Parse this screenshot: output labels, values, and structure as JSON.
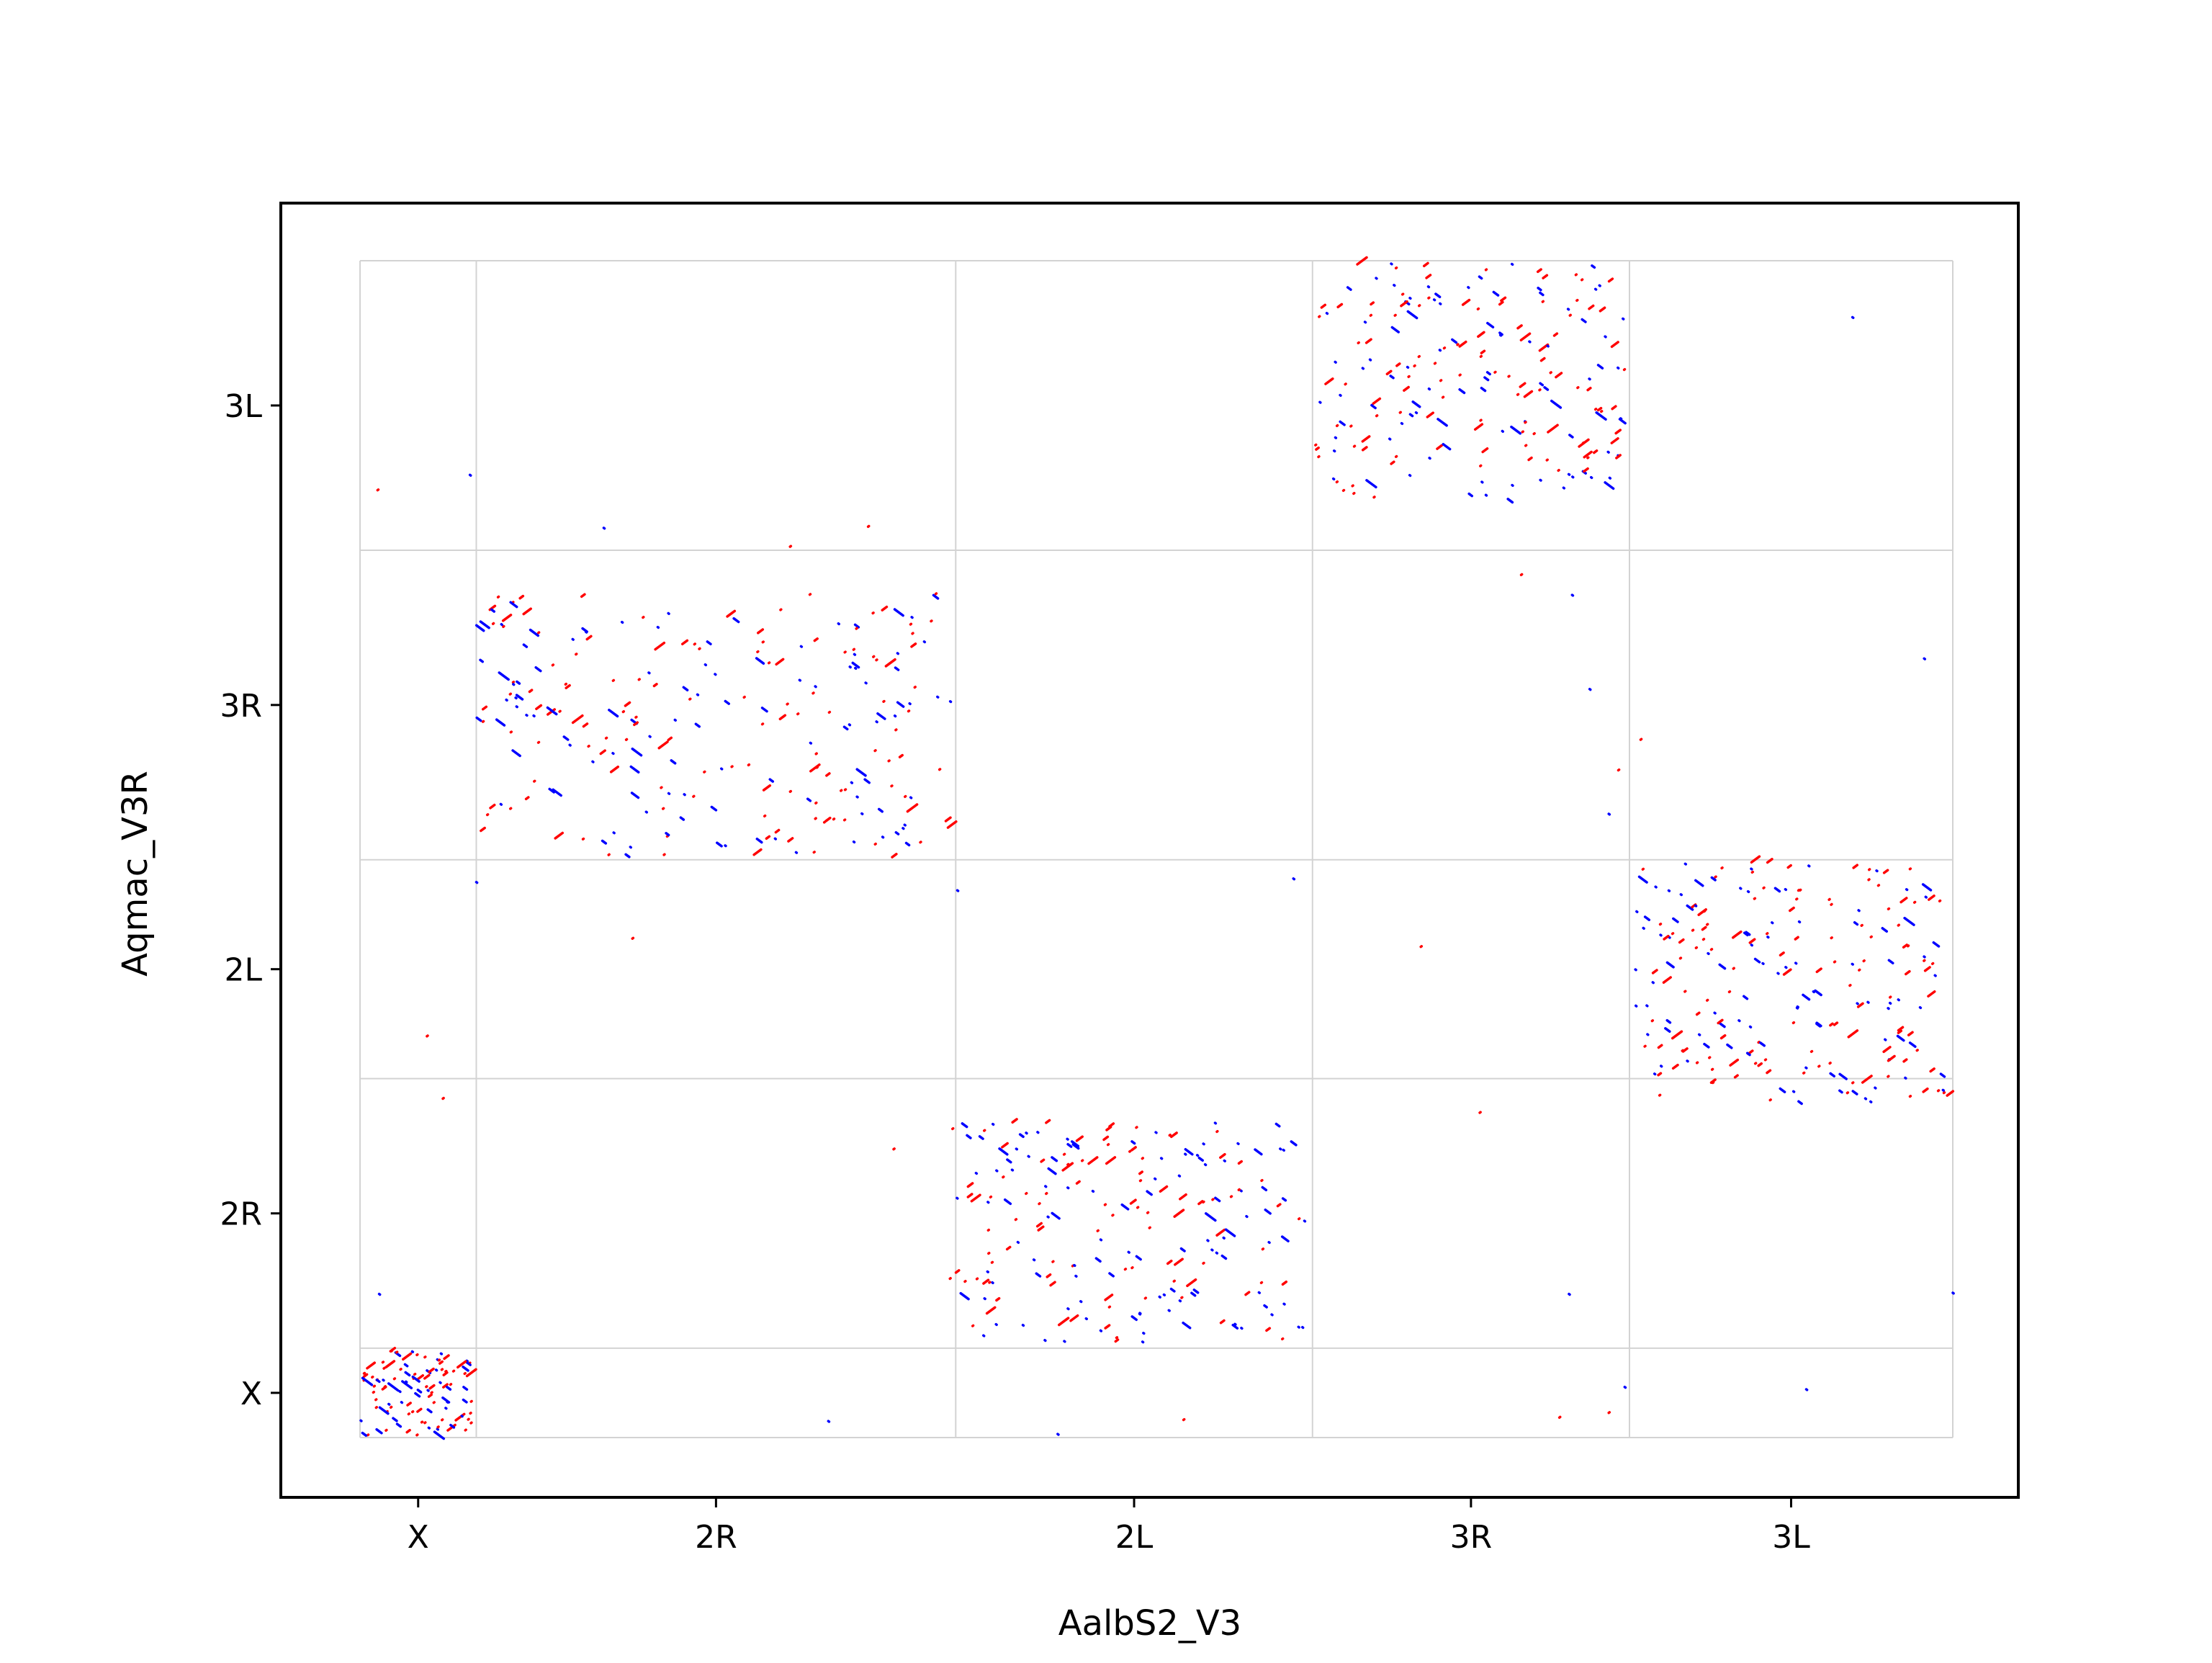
{
  "chart_data": {
    "type": "scatter",
    "title": "",
    "xlabel": "AalbS2_V3",
    "ylabel": "Aqmac_V3R",
    "grid": true,
    "legend": "none",
    "colors": {
      "forward": "#ff0000",
      "reverse": "#0000ff",
      "grid": "#d3d3d3"
    },
    "xlim": [
      0,
      1000
    ],
    "ylim": [
      0,
      1000
    ],
    "x_boundaries": [
      0,
      73,
      374,
      598,
      797,
      1000
    ],
    "y_boundaries": [
      0,
      76,
      305,
      491,
      754,
      1000
    ],
    "x_chromosomes": [
      {
        "label": "X",
        "start": 0,
        "end": 73
      },
      {
        "label": "2R",
        "start": 73,
        "end": 374
      },
      {
        "label": "2L",
        "start": 374,
        "end": 598
      },
      {
        "label": "3R",
        "start": 598,
        "end": 797
      },
      {
        "label": "3L",
        "start": 797,
        "end": 1000
      }
    ],
    "y_chromosomes": [
      {
        "label": "X",
        "start": 0,
        "end": 76
      },
      {
        "label": "2R",
        "start": 76,
        "end": 305
      },
      {
        "label": "2L",
        "start": 305,
        "end": 491
      },
      {
        "label": "3R",
        "start": 491,
        "end": 754
      },
      {
        "label": "3L",
        "start": 754,
        "end": 1000
      }
    ],
    "blocks": [
      {
        "id": "X-X",
        "x_range": [
          0,
          73
        ],
        "y_range": [
          0,
          76
        ],
        "count": 110,
        "seed": 11
      },
      {
        "id": "2R-3R",
        "x_range": [
          73,
          374
        ],
        "y_range": [
          490,
          720
        ],
        "count": 240,
        "seed": 23
      },
      {
        "id": "2L-2R",
        "x_range": [
          370,
          598
        ],
        "y_range": [
          76,
          270
        ],
        "count": 210,
        "seed": 37
      },
      {
        "id": "3R-3L",
        "x_range": [
          598,
          797
        ],
        "y_range": [
          795,
          1000
        ],
        "count": 200,
        "seed": 41
      },
      {
        "id": "3L-2L",
        "x_range": [
          797,
          1000
        ],
        "y_range": [
          282,
          491
        ],
        "count": 220,
        "seed": 53
      }
    ],
    "outliers": [
      {
        "x": 11,
        "y": 805,
        "strand": "forward"
      },
      {
        "x": 69,
        "y": 818,
        "strand": "reverse"
      },
      {
        "x": 153,
        "y": 773,
        "strand": "reverse"
      },
      {
        "x": 319,
        "y": 774,
        "strand": "forward"
      },
      {
        "x": 270,
        "y": 757,
        "strand": "forward"
      },
      {
        "x": 42,
        "y": 341,
        "strand": "forward"
      },
      {
        "x": 52,
        "y": 288,
        "strand": "forward"
      },
      {
        "x": 12,
        "y": 122,
        "strand": "reverse"
      },
      {
        "x": 171,
        "y": 424,
        "strand": "forward"
      },
      {
        "x": 335,
        "y": 245,
        "strand": "forward"
      },
      {
        "x": 375,
        "y": 465,
        "strand": "reverse"
      },
      {
        "x": 73,
        "y": 472,
        "strand": "reverse"
      },
      {
        "x": 294,
        "y": 14,
        "strand": "reverse"
      },
      {
        "x": 438,
        "y": 3,
        "strand": "reverse"
      },
      {
        "x": 517,
        "y": 15,
        "strand": "forward"
      },
      {
        "x": 586,
        "y": 475,
        "strand": "reverse"
      },
      {
        "x": 666,
        "y": 417,
        "strand": "forward"
      },
      {
        "x": 703,
        "y": 276,
        "strand": "forward"
      },
      {
        "x": 729,
        "y": 733,
        "strand": "forward"
      },
      {
        "x": 761,
        "y": 716,
        "strand": "reverse"
      },
      {
        "x": 772,
        "y": 636,
        "strand": "reverse"
      },
      {
        "x": 784,
        "y": 530,
        "strand": "reverse"
      },
      {
        "x": 790,
        "y": 567,
        "strand": "forward"
      },
      {
        "x": 794,
        "y": 43,
        "strand": "reverse"
      },
      {
        "x": 784,
        "y": 21,
        "strand": "forward"
      },
      {
        "x": 753,
        "y": 17,
        "strand": "forward"
      },
      {
        "x": 804,
        "y": 593,
        "strand": "forward"
      },
      {
        "x": 759,
        "y": 122,
        "strand": "reverse"
      },
      {
        "x": 937,
        "y": 952,
        "strand": "reverse"
      },
      {
        "x": 982,
        "y": 662,
        "strand": "reverse"
      },
      {
        "x": 908,
        "y": 41,
        "strand": "reverse"
      },
      {
        "x": 1000,
        "y": 123,
        "strand": "reverse"
      }
    ]
  }
}
